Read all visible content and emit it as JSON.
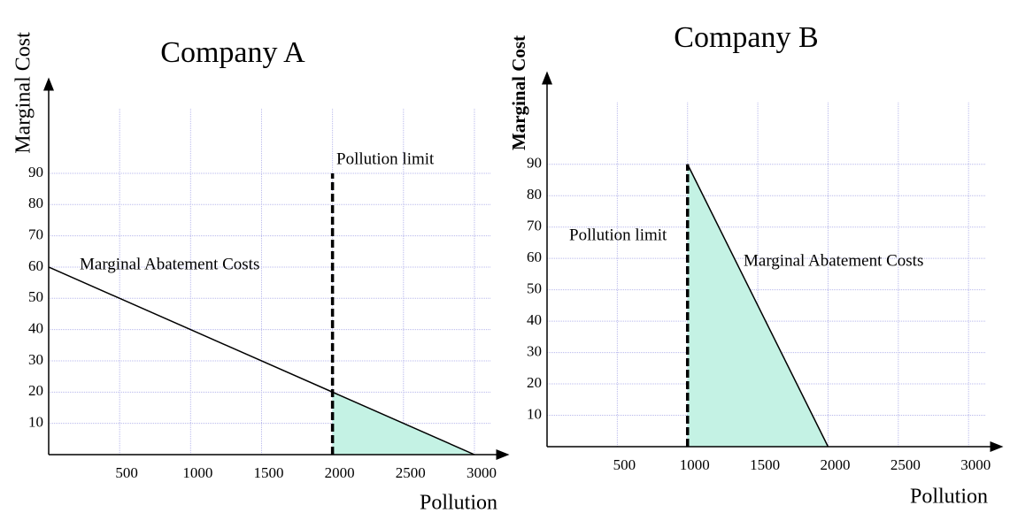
{
  "chart_data": [
    {
      "type": "line",
      "title": "Company A",
      "y_label": "Marginal Cost",
      "x_label": "Pollution",
      "series": [
        {
          "name": "Marginal Abatement Costs",
          "color": "#000000",
          "x": [
            0,
            3000
          ],
          "values": [
            60,
            0
          ]
        }
      ],
      "limit": {
        "label": "Pollution limit",
        "x": 2000,
        "top": 90
      },
      "shade_color": "#c4f2e4",
      "xlim": [
        0,
        3150
      ],
      "ylim": [
        0,
        118
      ],
      "xticks": [
        500,
        1000,
        1500,
        2000,
        2500,
        3000
      ],
      "yticks": [
        10,
        20,
        30,
        40,
        50,
        60,
        70,
        80,
        90
      ],
      "grid": true
    },
    {
      "type": "line",
      "title": "Company B",
      "y_label": "Marginal Cost",
      "x_label": "Pollution",
      "series": [
        {
          "name": "Marginal Abatement Costs",
          "color": "#000000",
          "x": [
            1000,
            2000
          ],
          "values": [
            90,
            0
          ]
        }
      ],
      "limit": {
        "label": "Pollution limit",
        "x": 1000,
        "top": 90
      },
      "shade_color": "#c4f2e4",
      "xlim": [
        0,
        3150
      ],
      "ylim": [
        0,
        117
      ],
      "xticks": [
        500,
        1000,
        1500,
        2000,
        2500,
        3000
      ],
      "yticks": [
        10,
        20,
        30,
        40,
        50,
        60,
        70,
        80,
        90
      ],
      "grid": true
    }
  ]
}
